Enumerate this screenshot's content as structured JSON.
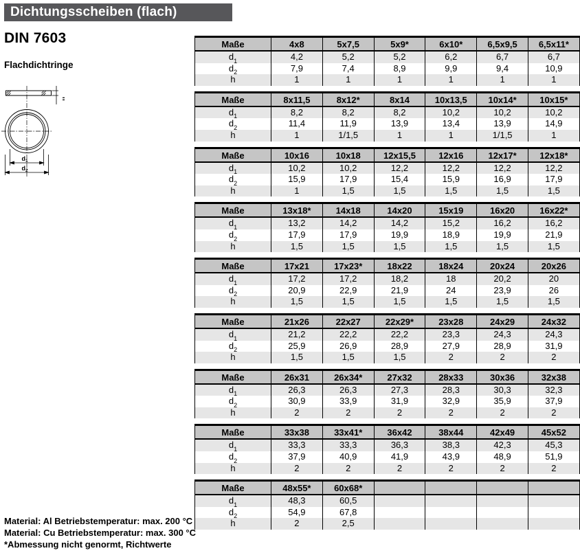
{
  "header": {
    "title": "Dichtungsscheiben (flach)"
  },
  "left": {
    "norm": "DIN 7603",
    "subtitle": "Flachdichtringe",
    "drawing": {
      "h_label": "h",
      "d1_base": "d",
      "d1_sub": "1",
      "d2_base": "d",
      "d2_sub": "2"
    },
    "notes": [
      "Material: Al Betriebstemperatur: max. 200 °C",
      "Material: Cu Betriebstemperatur: max. 300 °C",
      "*Abmessung nicht genormt, Richtwerte"
    ]
  },
  "tables": {
    "corner_label": "Maße",
    "rows": [
      {
        "key": "d1",
        "base": "d",
        "sub": "1"
      },
      {
        "key": "d2",
        "base": "d",
        "sub": "2"
      },
      {
        "key": "h",
        "base": "h",
        "sub": ""
      }
    ],
    "blocks": [
      {
        "sizes": [
          "4x8",
          "5x7,5",
          "5x9*",
          "6x10*",
          "6,5x9,5",
          "6,5x11*"
        ],
        "d1": [
          "4,2",
          "5,2",
          "5,2",
          "6,2",
          "6,7",
          "6,7"
        ],
        "d2": [
          "7,9",
          "7,4",
          "8,9",
          "9,9",
          "9,4",
          "10,9"
        ],
        "h": [
          "1",
          "1",
          "1",
          "1",
          "1",
          "1"
        ]
      },
      {
        "sizes": [
          "8x11,5",
          "8x12*",
          "8x14",
          "10x13,5",
          "10x14*",
          "10x15*"
        ],
        "d1": [
          "8,2",
          "8,2",
          "8,2",
          "10,2",
          "10,2",
          "10,2"
        ],
        "d2": [
          "11,4",
          "11,9",
          "13,9",
          "13,4",
          "13,9",
          "14,9"
        ],
        "h": [
          "1",
          "1/1,5",
          "1",
          "1",
          "1/1,5",
          "1"
        ]
      },
      {
        "sizes": [
          "10x16",
          "10x18",
          "12x15,5",
          "12x16",
          "12x17*",
          "12x18*"
        ],
        "d1": [
          "10,2",
          "10,2",
          "12,2",
          "12,2",
          "12,2",
          "12,2"
        ],
        "d2": [
          "15,9",
          "17,9",
          "15,4",
          "15,9",
          "16,9",
          "17,9"
        ],
        "h": [
          "1",
          "1,5",
          "1,5",
          "1,5",
          "1,5",
          "1,5"
        ]
      },
      {
        "sizes": [
          "13x18*",
          "14x18",
          "14x20",
          "15x19",
          "16x20",
          "16x22*"
        ],
        "d1": [
          "13,2",
          "14,2",
          "14,2",
          "15,2",
          "16,2",
          "16,2"
        ],
        "d2": [
          "17,9",
          "17,9",
          "19,9",
          "18,9",
          "19,9",
          "21,9"
        ],
        "h": [
          "1,5",
          "1,5",
          "1,5",
          "1,5",
          "1,5",
          "1,5"
        ]
      },
      {
        "sizes": [
          "17x21",
          "17x23*",
          "18x22",
          "18x24",
          "20x24",
          "20x26"
        ],
        "d1": [
          "17,2",
          "17,2",
          "18,2",
          "18",
          "20,2",
          "20"
        ],
        "d2": [
          "20,9",
          "22,9",
          "21,9",
          "24",
          "23,9",
          "26"
        ],
        "h": [
          "1,5",
          "1,5",
          "1,5",
          "1,5",
          "1,5",
          "1,5"
        ]
      },
      {
        "sizes": [
          "21x26",
          "22x27",
          "22x29*",
          "23x28",
          "24x29",
          "24x32"
        ],
        "d1": [
          "21,2",
          "22,2",
          "22,2",
          "23,3",
          "24,3",
          "24,3"
        ],
        "d2": [
          "25,9",
          "26,9",
          "28,9",
          "27,9",
          "28,9",
          "31,9"
        ],
        "h": [
          "1,5",
          "1,5",
          "1,5",
          "2",
          "2",
          "2"
        ]
      },
      {
        "sizes": [
          "26x31",
          "26x34*",
          "27x32",
          "28x33",
          "30x36",
          "32x38"
        ],
        "d1": [
          "26,3",
          "26,3",
          "27,3",
          "28,3",
          "30,3",
          "32,3"
        ],
        "d2": [
          "30,9",
          "33,9",
          "31,9",
          "32,9",
          "35,9",
          "37,9"
        ],
        "h": [
          "2",
          "2",
          "2",
          "2",
          "2",
          "2"
        ]
      },
      {
        "sizes": [
          "33x38",
          "33x41*",
          "36x42",
          "38x44",
          "42x49",
          "45x52"
        ],
        "d1": [
          "33,3",
          "33,3",
          "36,3",
          "38,3",
          "42,3",
          "45,3"
        ],
        "d2": [
          "37,9",
          "40,9",
          "41,9",
          "43,9",
          "48,9",
          "51,9"
        ],
        "h": [
          "2",
          "2",
          "2",
          "2",
          "2",
          "2"
        ]
      },
      {
        "sizes": [
          "48x55*",
          "60x68*",
          "",
          "",
          "",
          ""
        ],
        "d1": [
          "48,3",
          "60,5",
          "",
          "",
          "",
          ""
        ],
        "d2": [
          "54,9",
          "67,8",
          "",
          "",
          "",
          ""
        ],
        "h": [
          "2",
          "2,5",
          "",
          "",
          "",
          ""
        ]
      }
    ]
  },
  "colors": {
    "title_bar_bg": "#57575a",
    "table_header_bg": "#c5c5c5",
    "row_shade_bg": "#e6e6e6",
    "border": "#000000"
  }
}
